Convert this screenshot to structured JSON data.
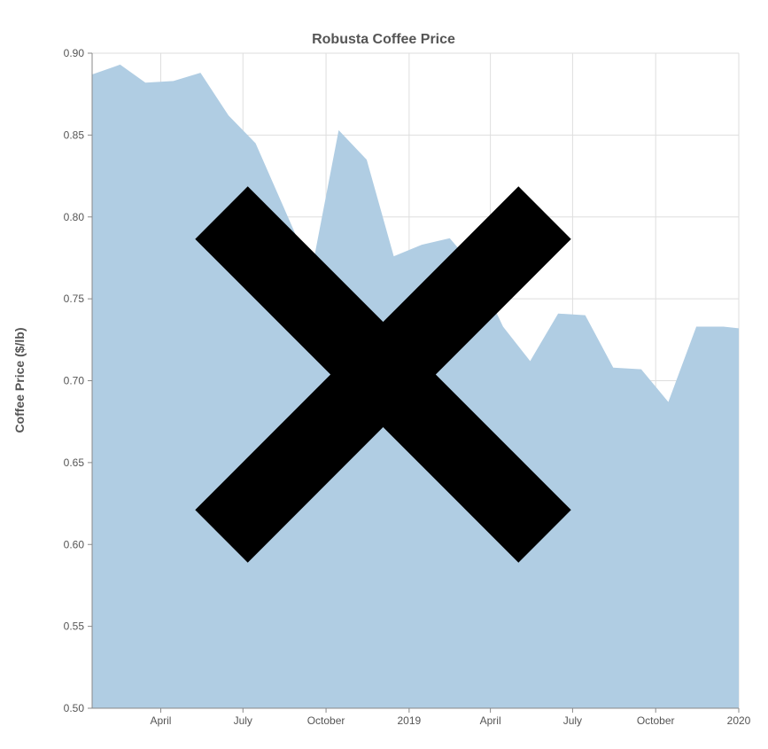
{
  "chart_data": {
    "type": "area",
    "title": "Robusta Coffee Price",
    "xlabel": "",
    "ylabel": "Coffee Price ($/lb)",
    "x_range": [
      "2018-01-15",
      "2020-01-01"
    ],
    "ylim": [
      0.5,
      0.9
    ],
    "y_ticks": [
      0.5,
      0.55,
      0.6,
      0.65,
      0.7,
      0.75,
      0.8,
      0.85,
      0.9
    ],
    "x_ticks": [
      {
        "date": "2018-04-01",
        "label": "April"
      },
      {
        "date": "2018-07-01",
        "label": "July"
      },
      {
        "date": "2018-10-01",
        "label": "October"
      },
      {
        "date": "2019-01-01",
        "label": "2019"
      },
      {
        "date": "2019-04-01",
        "label": "April"
      },
      {
        "date": "2019-07-01",
        "label": "July"
      },
      {
        "date": "2019-10-01",
        "label": "October"
      },
      {
        "date": "2020-01-01",
        "label": "2020"
      }
    ],
    "grid": true,
    "color": "#b0cde3",
    "overlay": "black-x",
    "series": [
      {
        "name": "",
        "x": [
          "2018-01-15",
          "2018-02-15",
          "2018-03-15",
          "2018-04-15",
          "2018-05-15",
          "2018-06-15",
          "2018-07-15",
          "2018-08-15",
          "2018-09-15",
          "2018-10-15",
          "2018-11-15",
          "2018-12-15",
          "2019-01-15",
          "2019-02-15",
          "2019-03-15",
          "2019-04-15",
          "2019-05-15",
          "2019-06-15",
          "2019-07-15",
          "2019-08-15",
          "2019-09-15",
          "2019-10-15",
          "2019-11-15",
          "2019-12-15",
          "2020-01-01"
        ],
        "values": [
          0.887,
          0.893,
          0.882,
          0.883,
          0.888,
          0.862,
          0.845,
          0.806,
          0.767,
          0.853,
          0.835,
          0.776,
          0.783,
          0.787,
          0.769,
          0.733,
          0.712,
          0.741,
          0.74,
          0.708,
          0.707,
          0.687,
          0.733,
          0.733,
          0.732
        ]
      }
    ]
  }
}
